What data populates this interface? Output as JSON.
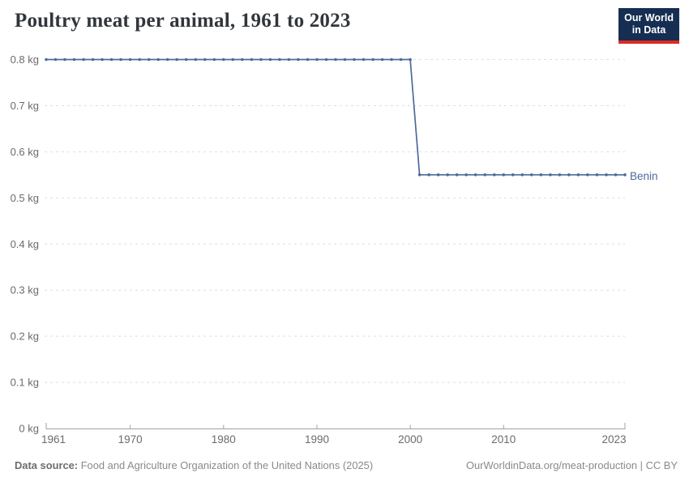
{
  "header": {
    "title": "Poultry meat per animal, 1961 to 2023",
    "logo": {
      "line1": "Our World",
      "line2": "in Data"
    }
  },
  "chart_data": {
    "type": "line",
    "title": "Poultry meat per animal, 1961 to 2023",
    "unit": "kg",
    "xlim": [
      1961,
      2023
    ],
    "ylim": [
      0,
      0.8
    ],
    "grid": "dashed horizontal gridlines",
    "legend_position": "right-of-line-label",
    "x": [
      1961,
      1962,
      1963,
      1964,
      1965,
      1966,
      1967,
      1968,
      1969,
      1970,
      1971,
      1972,
      1973,
      1974,
      1975,
      1976,
      1977,
      1978,
      1979,
      1980,
      1981,
      1982,
      1983,
      1984,
      1985,
      1986,
      1987,
      1988,
      1989,
      1990,
      1991,
      1992,
      1993,
      1994,
      1995,
      1996,
      1997,
      1998,
      1999,
      2000,
      2001,
      2002,
      2003,
      2004,
      2005,
      2006,
      2007,
      2008,
      2009,
      2010,
      2011,
      2012,
      2013,
      2014,
      2015,
      2016,
      2017,
      2018,
      2019,
      2020,
      2021,
      2022,
      2023
    ],
    "series": [
      {
        "name": "Benin",
        "color": "#4c6a9c",
        "values": [
          0.8,
          0.8,
          0.8,
          0.8,
          0.8,
          0.8,
          0.8,
          0.8,
          0.8,
          0.8,
          0.8,
          0.8,
          0.8,
          0.8,
          0.8,
          0.8,
          0.8,
          0.8,
          0.8,
          0.8,
          0.8,
          0.8,
          0.8,
          0.8,
          0.8,
          0.8,
          0.8,
          0.8,
          0.8,
          0.8,
          0.8,
          0.8,
          0.8,
          0.8,
          0.8,
          0.8,
          0.8,
          0.8,
          0.8,
          0.8,
          0.55,
          0.55,
          0.55,
          0.55,
          0.55,
          0.55,
          0.55,
          0.55,
          0.55,
          0.55,
          0.55,
          0.55,
          0.55,
          0.55,
          0.55,
          0.55,
          0.55,
          0.55,
          0.55,
          0.55,
          0.55,
          0.55,
          0.55
        ]
      }
    ],
    "y_ticks": [
      {
        "value": 0,
        "label": "0 kg"
      },
      {
        "value": 0.1,
        "label": "0.1 kg"
      },
      {
        "value": 0.2,
        "label": "0.2 kg"
      },
      {
        "value": 0.3,
        "label": "0.3 kg"
      },
      {
        "value": 0.4,
        "label": "0.4 kg"
      },
      {
        "value": 0.5,
        "label": "0.5 kg"
      },
      {
        "value": 0.6,
        "label": "0.6 kg"
      },
      {
        "value": 0.7,
        "label": "0.7 kg"
      },
      {
        "value": 0.8,
        "label": "0.8 kg"
      }
    ],
    "x_ticks": [
      {
        "value": 1961,
        "label": "1961"
      },
      {
        "value": 1970,
        "label": "1970"
      },
      {
        "value": 1980,
        "label": "1980"
      },
      {
        "value": 1990,
        "label": "1990"
      },
      {
        "value": 2000,
        "label": "2000"
      },
      {
        "value": 2010,
        "label": "2010"
      },
      {
        "value": 2023,
        "label": "2023"
      }
    ]
  },
  "footer": {
    "source_label": "Data source:",
    "source_text": "Food and Agriculture Organization of the United Nations (2025)",
    "link_text": "OurWorldinData.org/meat-production | CC BY"
  },
  "colors": {
    "line": "#4c6a9c",
    "entity_label": "#4c6a9c",
    "grid": "#dedede",
    "axis": "#a1a1a1",
    "tick_text": "#6b6b6b",
    "title_text": "#31363c",
    "footer_text": "#8a8a8a",
    "logo_bg": "#152e52",
    "logo_red": "#dc2c20"
  }
}
